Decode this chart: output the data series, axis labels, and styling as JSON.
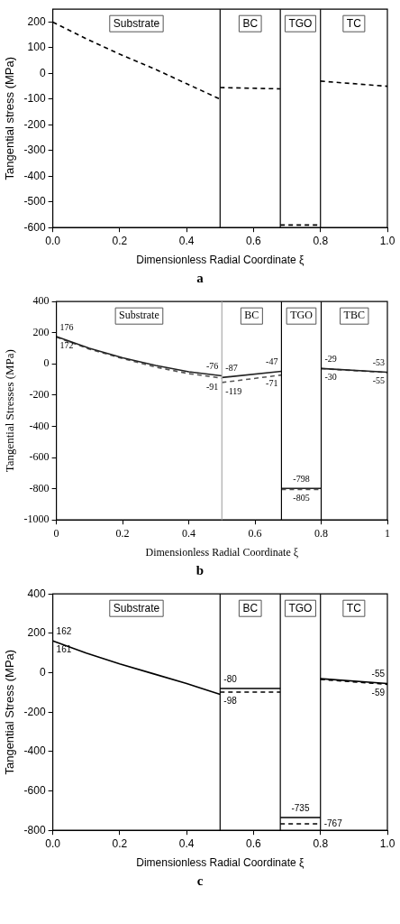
{
  "chart_data": [
    {
      "type": "line",
      "xlabel": "Dimensionless Radial Coordinate ξ",
      "ylabel": "Tangential stress (MPa)",
      "xlim": [
        0,
        1
      ],
      "ylim": [
        -600,
        250
      ],
      "xticks": [
        {
          "value": 0,
          "label": "0.0"
        },
        {
          "value": 0.2,
          "label": "0.2"
        },
        {
          "value": 0.4,
          "label": "0.4"
        },
        {
          "value": 0.6,
          "label": "0.6"
        },
        {
          "value": 0.8,
          "label": "0.8"
        },
        {
          "value": 1,
          "label": "1.0"
        }
      ],
      "yticks": [
        -600,
        -500,
        -400,
        -300,
        -200,
        -100,
        0,
        100,
        200
      ],
      "grid": false,
      "legend": false,
      "marker": "none",
      "series": [
        {
          "color": "#000000",
          "line_style": "dashed",
          "x": [
            0,
            0.1,
            0.2,
            0.3,
            0.4,
            0.5,
            0.5,
            0.68,
            0.68,
            0.8,
            0.8,
            1
          ],
          "values": [
            200,
            135,
            75,
            20,
            -40,
            -100,
            -55,
            -60,
            -590,
            -590,
            -30,
            -50
          ]
        }
      ],
      "ref_lines": [
        {
          "axis": "x",
          "value": 0.5,
          "color": "#000000"
        },
        {
          "axis": "x",
          "value": 0.68,
          "color": "#000000"
        },
        {
          "axis": "x",
          "value": 0.8,
          "color": "#000000"
        }
      ],
      "annotations": [
        "a",
        "Substrate",
        "BC",
        "TGO",
        "TC"
      ]
    },
    {
      "type": "line",
      "xlabel": "Dimensionless Radial Coordinate ξ",
      "ylabel": "Tangential Stresses (MPa)",
      "xlim": [
        0,
        1
      ],
      "ylim": [
        -1000,
        400
      ],
      "xticks": [
        0,
        0.2,
        0.4,
        0.6,
        0.8,
        1
      ],
      "yticks": [
        -1000,
        -800,
        -600,
        -400,
        -200,
        0,
        200,
        400
      ],
      "grid": false,
      "legend": false,
      "marker": "none",
      "series": [
        {
          "color": "#222222",
          "line_style": "solid",
          "x": [
            0,
            0.1,
            0.2,
            0.3,
            0.4,
            0.5,
            0.5,
            0.68,
            0.68,
            0.8,
            0.8,
            1
          ],
          "values": [
            176,
            100,
            40,
            -10,
            -50,
            -76,
            -87,
            -47,
            -798,
            -798,
            -29,
            -53
          ]
        },
        {
          "color": "#555555",
          "line_style": "dashed",
          "x": [
            0,
            0.1,
            0.2,
            0.3,
            0.4,
            0.5,
            0.5,
            0.68,
            0.68,
            0.8,
            0.8,
            1
          ],
          "values": [
            172,
            95,
            35,
            -20,
            -62,
            -91,
            -119,
            -71,
            -805,
            -805,
            -30,
            -55
          ]
        }
      ],
      "ref_lines": [
        {
          "axis": "x",
          "value": 0.5,
          "color": "#aaaaaa"
        },
        {
          "axis": "x",
          "value": 0.68,
          "color": "#000000"
        },
        {
          "axis": "x",
          "value": 0.8,
          "color": "#000000"
        }
      ],
      "annotations": [
        "b",
        "Substrate",
        "BC",
        "TGO",
        "TBC",
        {
          "text": "176",
          "x": 0,
          "y": 176
        },
        {
          "text": "172",
          "x": 0,
          "y": 172
        },
        {
          "text": "-76",
          "x": 0.5,
          "y": -76
        },
        {
          "text": "-91",
          "x": 0.5,
          "y": -91
        },
        {
          "text": "-87",
          "x": 0.5,
          "y": -87
        },
        {
          "text": "-119",
          "x": 0.5,
          "y": -119
        },
        {
          "text": "-47",
          "x": 0.68,
          "y": -47
        },
        {
          "text": "-71",
          "x": 0.68,
          "y": -71
        },
        {
          "text": "-798",
          "x": 0.74,
          "y": -798
        },
        {
          "text": "-805",
          "x": 0.74,
          "y": -805
        },
        {
          "text": "-29",
          "x": 0.8,
          "y": -29
        },
        {
          "text": "-30",
          "x": 0.8,
          "y": -30
        },
        {
          "text": "-53",
          "x": 1,
          "y": -53
        },
        {
          "text": "-55",
          "x": 1,
          "y": -55
        }
      ]
    },
    {
      "type": "line",
      "xlabel": "Dimensionless Radial Coordinate ξ",
      "ylabel": "Tangential Stress (MPa)",
      "xlim": [
        0,
        1
      ],
      "ylim": [
        -800,
        400
      ],
      "xticks": [
        {
          "value": 0,
          "label": "0.0"
        },
        {
          "value": 0.2,
          "label": "0.2"
        },
        {
          "value": 0.4,
          "label": "0.4"
        },
        {
          "value": 0.6,
          "label": "0.6"
        },
        {
          "value": 0.8,
          "label": "0.8"
        },
        {
          "value": 1,
          "label": "1.0"
        }
      ],
      "yticks": [
        -800,
        -600,
        -400,
        -200,
        0,
        200,
        400
      ],
      "grid": false,
      "legend": false,
      "marker": "none",
      "series": [
        {
          "color": "#000000",
          "line_style": "solid",
          "x": [
            0,
            0.1,
            0.2,
            0.3,
            0.4,
            0.5,
            0.5,
            0.68,
            0.68,
            0.8,
            0.8,
            1
          ],
          "values": [
            162,
            100,
            45,
            -5,
            -55,
            -110,
            -80,
            -80,
            -735,
            -735,
            -30,
            -55
          ]
        },
        {
          "color": "#000000",
          "line_style": "dashed",
          "x": [
            0.5,
            0.68,
            0.68,
            0.8,
            0.8,
            1
          ],
          "values": [
            -98,
            -98,
            -767,
            -767,
            -34,
            -59
          ]
        }
      ],
      "ref_lines": [
        {
          "axis": "x",
          "value": 0.5,
          "color": "#000000"
        },
        {
          "axis": "x",
          "value": 0.68,
          "color": "#000000"
        },
        {
          "axis": "x",
          "value": 0.8,
          "color": "#000000"
        }
      ],
      "annotations": [
        "c",
        "Substrate",
        "BC",
        "TGO",
        "TC",
        {
          "text": "162",
          "x": 0,
          "y": 162
        },
        {
          "text": "161",
          "x": 0,
          "y": 161
        },
        {
          "text": "-80",
          "x": 0.5,
          "y": -80
        },
        {
          "text": "-98",
          "x": 0.5,
          "y": -98
        },
        {
          "text": "-735",
          "x": 0.74,
          "y": -735
        },
        {
          "text": "-767",
          "x": 0.8,
          "y": -767
        },
        {
          "text": "-55",
          "x": 1,
          "y": -55
        },
        {
          "text": "-59",
          "x": 1,
          "y": -59
        }
      ]
    }
  ]
}
